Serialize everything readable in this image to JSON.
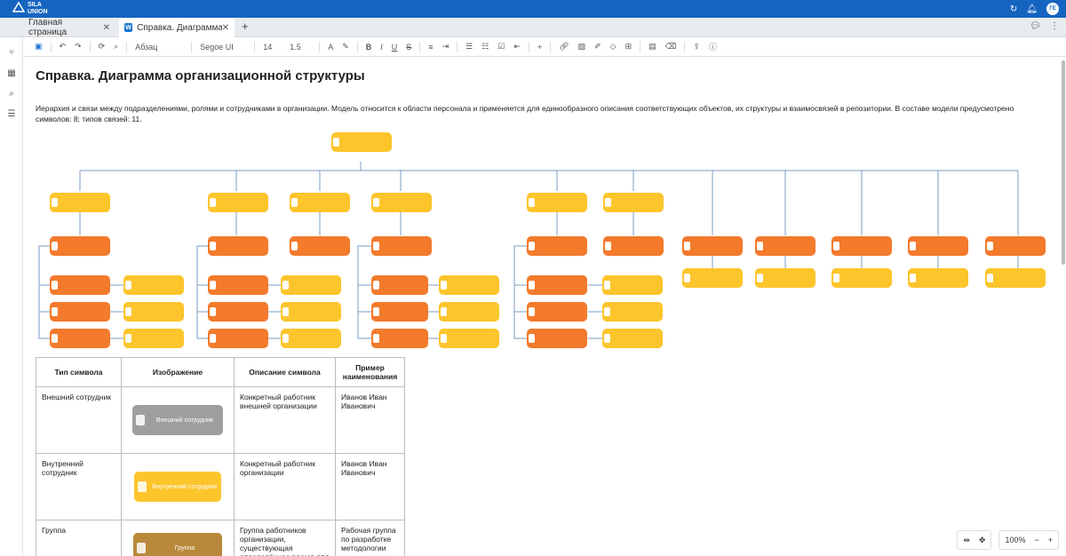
{
  "app": {
    "logo_line1": "SILA",
    "logo_line2": "UNION",
    "avatar": "ГЕ"
  },
  "tabs": [
    {
      "label": "Главная страница"
    },
    {
      "label": "Справка. Диаграмма с",
      "icon": "W"
    }
  ],
  "toolbar": {
    "paragraph": "Абзац",
    "font": "Segoe UI",
    "size": "14",
    "line_height": "1.5"
  },
  "page": {
    "title": "Справка. Диаграмма организационной структуры",
    "description": "Иерархия и связи между подразделениями, ролями и сотрудниками в организации. Модель относится к области персонала и применяется для единообразного описания соответствующих объектов, их структуры и взаимосвязей в репозитории. В составе модели предусмотрено символов: 8; типов связей: 11."
  },
  "table": {
    "headers": [
      "Тип символа",
      "Изображение",
      "Описание символа",
      "Пример наименования"
    ],
    "rows": [
      {
        "type": "Внешний сотрудник",
        "symbol": "Внешний сотрудник",
        "desc": "Конкретный работник внешней организации",
        "example": "Иванов Иван Иванович",
        "color": "#9e9e9e"
      },
      {
        "type": "Внутренний сотрудник",
        "symbol": "Внутренний сотрудник",
        "desc": "Конкретный работник организации",
        "example": "Иванов Иван Иванович",
        "color": "#fcc52c"
      },
      {
        "type": "Группа",
        "symbol": "Группа",
        "desc": "Группа работников организации, существующая определённое время для выполнения",
        "example": "Рабочая группа по разработке методологии",
        "color": "#b8893a"
      }
    ]
  },
  "zoom": {
    "value": "100%"
  }
}
